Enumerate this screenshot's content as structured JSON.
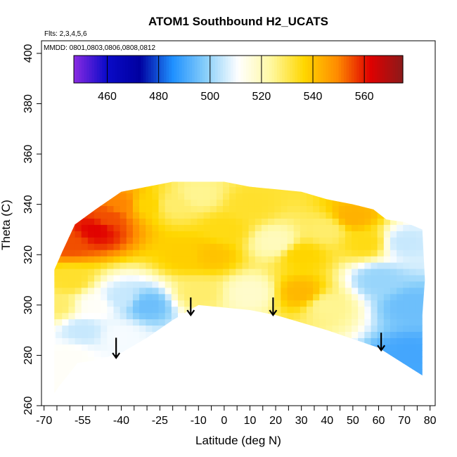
{
  "chart_data": {
    "type": "heatmap",
    "title": "ATOM1 Southbound H2_UCATS",
    "subtitle_flights": "Flts: 2,3,4,5,6",
    "subtitle_dates": "MMDD: 0801,0803,0806,0808,0812",
    "xlabel": "Latitude (deg N)",
    "ylabel": "Theta (C)",
    "xlim": [
      -71,
      82
    ],
    "ylim": [
      260,
      405
    ],
    "x_ticks": [
      -70,
      -55,
      -40,
      -25,
      -10,
      0,
      10,
      20,
      30,
      40,
      50,
      60,
      70,
      80
    ],
    "y_ticks": [
      260,
      280,
      300,
      320,
      340,
      360,
      380,
      400
    ],
    "grid": false,
    "colorbar": {
      "range": [
        447,
        575
      ],
      "ticks": [
        460,
        480,
        500,
        520,
        540,
        560
      ],
      "placement": "top",
      "colors": [
        "#8a2be2",
        "#0a0ac8",
        "#0000a0",
        "#1e90ff",
        "#87cefa",
        "#ffffff",
        "#fff8a0",
        "#ffd700",
        "#ff8c00",
        "#e00000",
        "#8b1a1a"
      ]
    },
    "upper_boundary": [
      [
        -66,
        314
      ],
      [
        -63,
        321
      ],
      [
        -58,
        332
      ],
      [
        -50,
        338
      ],
      [
        -40,
        345
      ],
      [
        -30,
        347
      ],
      [
        -20,
        349
      ],
      [
        -10,
        349
      ],
      [
        0,
        349
      ],
      [
        10,
        347
      ],
      [
        20,
        346
      ],
      [
        30,
        345
      ],
      [
        40,
        342
      ],
      [
        50,
        340
      ],
      [
        58,
        338
      ],
      [
        63,
        334
      ],
      [
        70,
        333
      ],
      [
        77,
        330
      ],
      [
        78,
        310
      ],
      [
        77,
        296
      ]
    ],
    "lower_boundary": [
      [
        77,
        296
      ],
      [
        77,
        272
      ],
      [
        60,
        283
      ],
      [
        40,
        290
      ],
      [
        20,
        296
      ],
      [
        10,
        298
      ],
      [
        0,
        299
      ],
      [
        -10,
        300
      ],
      [
        -20,
        294
      ],
      [
        -30,
        287
      ],
      [
        -40,
        281
      ],
      [
        -50,
        278
      ],
      [
        -57,
        277
      ],
      [
        -60,
        273
      ],
      [
        -64,
        268
      ],
      [
        -66,
        265
      ],
      [
        -66,
        314
      ]
    ],
    "field_samples": [
      {
        "lat": -60,
        "theta": 325,
        "value": 555
      },
      {
        "lat": -50,
        "theta": 330,
        "value": 562
      },
      {
        "lat": -45,
        "theta": 335,
        "value": 555
      },
      {
        "lat": -40,
        "theta": 340,
        "value": 550
      },
      {
        "lat": -30,
        "theta": 340,
        "value": 537
      },
      {
        "lat": -20,
        "theta": 340,
        "value": 528
      },
      {
        "lat": -10,
        "theta": 344,
        "value": 525
      },
      {
        "lat": -15,
        "theta": 320,
        "value": 538
      },
      {
        "lat": -5,
        "theta": 320,
        "value": 540
      },
      {
        "lat": 0,
        "theta": 330,
        "value": 535
      },
      {
        "lat": 10,
        "theta": 340,
        "value": 533
      },
      {
        "lat": 20,
        "theta": 325,
        "value": 520
      },
      {
        "lat": 30,
        "theta": 320,
        "value": 537
      },
      {
        "lat": 30,
        "theta": 305,
        "value": 542
      },
      {
        "lat": 40,
        "theta": 330,
        "value": 528
      },
      {
        "lat": 50,
        "theta": 335,
        "value": 543
      },
      {
        "lat": 55,
        "theta": 325,
        "value": 535
      },
      {
        "lat": 60,
        "theta": 310,
        "value": 500
      },
      {
        "lat": 70,
        "theta": 325,
        "value": 505
      },
      {
        "lat": 72,
        "theta": 300,
        "value": 495
      },
      {
        "lat": 72,
        "theta": 280,
        "value": 490
      },
      {
        "lat": 40,
        "theta": 300,
        "value": 525
      },
      {
        "lat": 10,
        "theta": 305,
        "value": 518
      },
      {
        "lat": -10,
        "theta": 305,
        "value": 528
      },
      {
        "lat": -30,
        "theta": 300,
        "value": 495
      },
      {
        "lat": -40,
        "theta": 303,
        "value": 505
      },
      {
        "lat": -50,
        "theta": 300,
        "value": 512
      },
      {
        "lat": -55,
        "theta": 290,
        "value": 505
      },
      {
        "lat": -60,
        "theta": 280,
        "value": 512
      },
      {
        "lat": -65,
        "theta": 300,
        "value": 528
      },
      {
        "lat": -40,
        "theta": 288,
        "value": 510
      },
      {
        "lat": -60,
        "theta": 310,
        "value": 533
      }
    ],
    "arrows": [
      {
        "lat": -42,
        "theta_top": 287,
        "theta_bottom": 279
      },
      {
        "lat": -13,
        "theta_top": 303,
        "theta_bottom": 296
      },
      {
        "lat": 19,
        "theta_top": 303,
        "theta_bottom": 296
      },
      {
        "lat": 61,
        "theta_top": 289,
        "theta_bottom": 282
      }
    ]
  }
}
